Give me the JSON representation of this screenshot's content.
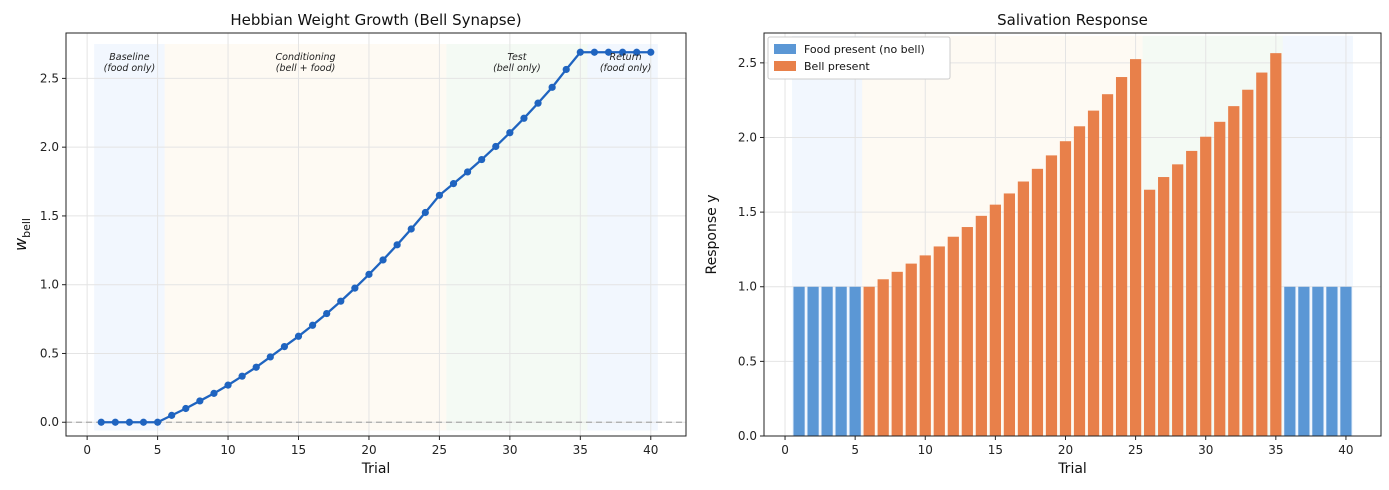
{
  "colors": {
    "baseline": "#dbe9fb",
    "conditioning": "#fdf0dc",
    "test": "#dff0df",
    "return": "#dbe9fb",
    "line": "#1f64c0",
    "food_bar": "#5b97d5",
    "bell_bar": "#e8804a",
    "grid": "#e4e4e4"
  },
  "phases": [
    {
      "name": "Baseline",
      "sub": "(food only)",
      "start": 0.5,
      "end": 5.5
    },
    {
      "name": "Conditioning",
      "sub": "(bell + food)",
      "start": 5.5,
      "end": 25.5
    },
    {
      "name": "Test",
      "sub": "(bell only)",
      "start": 25.5,
      "end": 35.5
    },
    {
      "name": "Return",
      "sub": "(food only)",
      "start": 35.5,
      "end": 40.5
    }
  ],
  "chart_data": [
    {
      "type": "line",
      "title": "Hebbian Weight Growth (Bell Synapse)",
      "xlabel": "Trial",
      "ylabel": "w",
      "ylabel_sub": "bell",
      "xlim": [
        -1.5,
        42.5
      ],
      "ylim": [
        -0.1,
        2.83
      ],
      "xticks": [
        0,
        5,
        10,
        15,
        20,
        25,
        30,
        35,
        40
      ],
      "yticks": [
        0.0,
        0.5,
        1.0,
        1.5,
        2.0,
        2.5
      ],
      "grid": true,
      "reference_line_y": 0.0,
      "x": [
        1,
        2,
        3,
        4,
        5,
        6,
        7,
        8,
        9,
        10,
        11,
        12,
        13,
        14,
        15,
        16,
        17,
        18,
        19,
        20,
        21,
        22,
        23,
        24,
        25,
        26,
        27,
        28,
        29,
        30,
        31,
        32,
        33,
        34,
        35,
        36,
        37,
        38,
        39,
        40
      ],
      "values": [
        0,
        0,
        0,
        0,
        0,
        0.05,
        0.1,
        0.155,
        0.21,
        0.27,
        0.335,
        0.4,
        0.475,
        0.55,
        0.625,
        0.705,
        0.79,
        0.88,
        0.975,
        1.075,
        1.18,
        1.29,
        1.405,
        1.525,
        1.65,
        1.735,
        1.82,
        1.91,
        2.005,
        2.105,
        2.21,
        2.32,
        2.435,
        2.565,
        2.69,
        2.69,
        2.69,
        2.69,
        2.69,
        2.69
      ]
    },
    {
      "type": "bar",
      "title": "Salivation Response",
      "xlabel": "Trial",
      "ylabel": "Response y",
      "xlim": [
        -1.5,
        42.5
      ],
      "ylim": [
        0,
        2.7
      ],
      "xticks": [
        0,
        5,
        10,
        15,
        20,
        25,
        30,
        35,
        40
      ],
      "yticks": [
        0.0,
        0.5,
        1.0,
        1.5,
        2.0,
        2.5
      ],
      "grid": true,
      "legend_position": "top-left",
      "series": [
        {
          "name": "Food present (no bell)",
          "x": [
            1,
            2,
            3,
            4,
            5,
            36,
            37,
            38,
            39,
            40
          ],
          "values": [
            1,
            1,
            1,
            1,
            1,
            1,
            1,
            1,
            1,
            1
          ]
        },
        {
          "name": "Bell present",
          "x": [
            6,
            7,
            8,
            9,
            10,
            11,
            12,
            13,
            14,
            15,
            16,
            17,
            18,
            19,
            20,
            21,
            22,
            23,
            24,
            25,
            26,
            27,
            28,
            29,
            30,
            31,
            32,
            33,
            34,
            35
          ],
          "values": [
            1.0,
            1.05,
            1.1,
            1.155,
            1.21,
            1.27,
            1.335,
            1.4,
            1.475,
            1.55,
            1.625,
            1.705,
            1.79,
            1.88,
            1.975,
            2.075,
            2.18,
            2.29,
            2.405,
            2.525,
            1.65,
            1.735,
            1.82,
            1.91,
            2.005,
            2.105,
            2.21,
            2.32,
            2.435,
            2.565
          ]
        }
      ]
    }
  ]
}
